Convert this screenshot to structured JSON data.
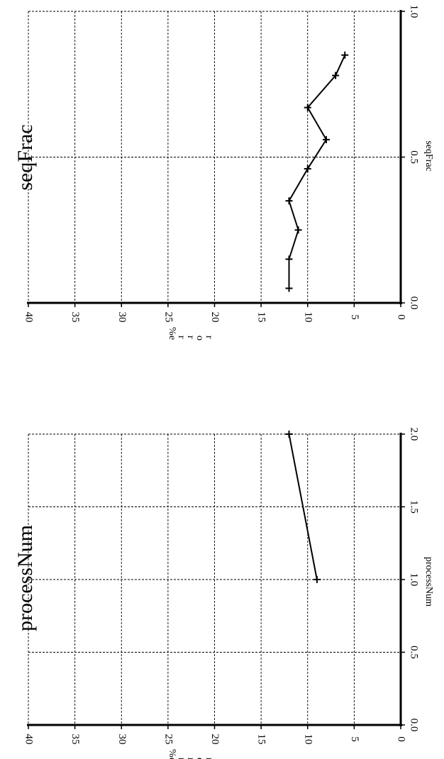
{
  "chart_data": [
    {
      "type": "line",
      "title": "processNum",
      "xlabel": "processNum",
      "ylabel": "error %",
      "xlim": [
        0.0,
        2.0
      ],
      "ylim": [
        0,
        40
      ],
      "xticks": [
        "0.0",
        "0.5",
        "1.0",
        "1.5",
        "2.0"
      ],
      "yticks": [
        "0",
        "5",
        "10",
        "15",
        "20",
        "25",
        "30",
        "35",
        "40"
      ],
      "grid": true,
      "series": [
        {
          "x": [
            1.0,
            2.0
          ],
          "y": [
            9,
            12
          ]
        }
      ]
    },
    {
      "type": "line",
      "title": "seqFrac",
      "xlabel": "seqFrac",
      "ylabel": "error %",
      "xlim": [
        0.0,
        1.0
      ],
      "ylim": [
        0,
        40
      ],
      "xticks": [
        "0.0",
        "0.5",
        "1.0"
      ],
      "yticks": [
        "0",
        "5",
        "10",
        "15",
        "20",
        "25",
        "30",
        "35",
        "40"
      ],
      "grid": true,
      "series": [
        {
          "x": [
            0.05,
            0.15,
            0.25,
            0.35,
            0.46,
            0.56,
            0.67,
            0.78,
            0.85
          ],
          "y": [
            12,
            12,
            11,
            12,
            10,
            8,
            10,
            7,
            6
          ]
        }
      ]
    }
  ]
}
